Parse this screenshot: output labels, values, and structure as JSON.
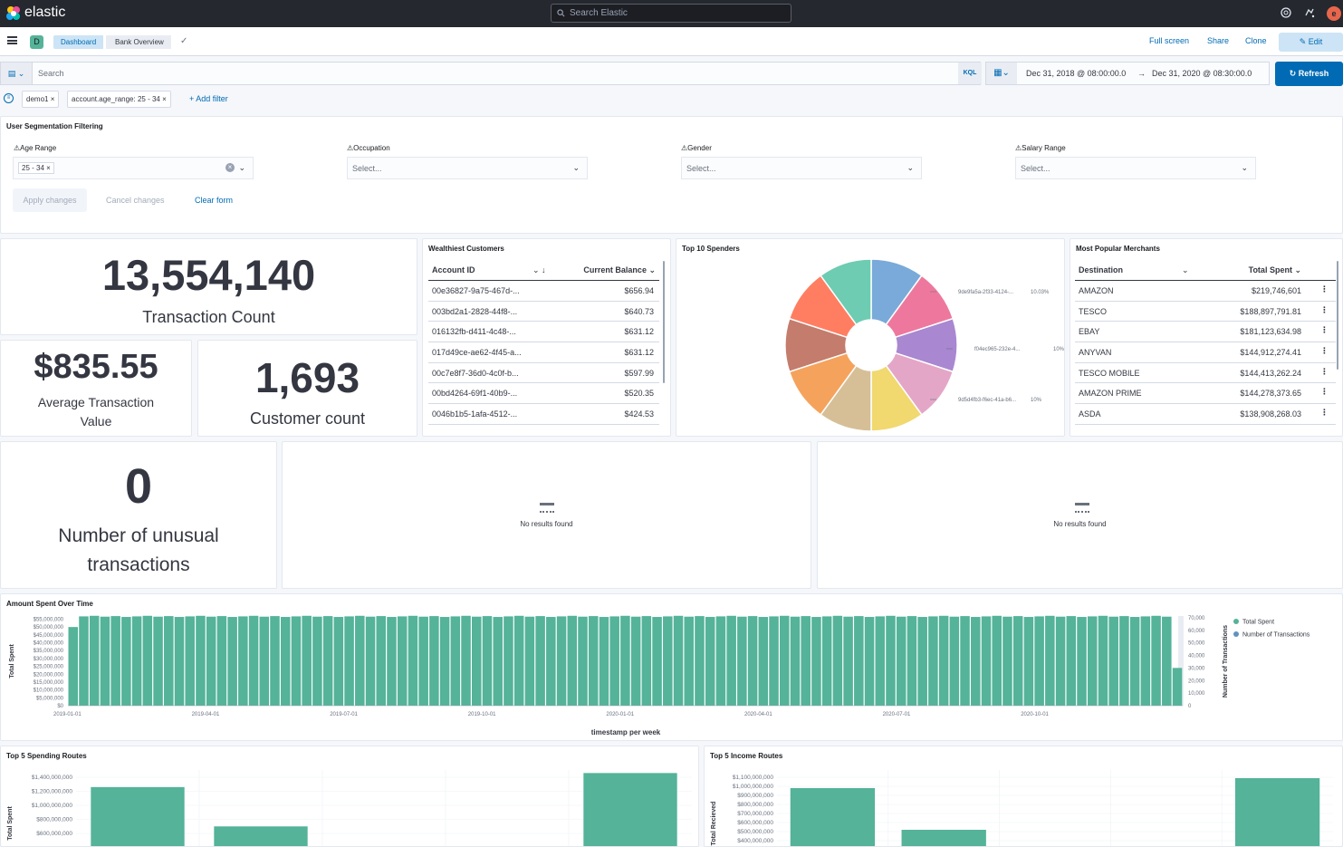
{
  "topbar": {
    "brand": "elastic",
    "search_placeholder": "Search Elastic",
    "avatar": "e"
  },
  "nav": {
    "space": "D",
    "crumb_dashboard": "Dashboard",
    "crumb_current": "Bank Overview",
    "full_screen": "Full screen",
    "share": "Share",
    "clone": "Clone",
    "edit": "Edit"
  },
  "query": {
    "placeholder": "Search",
    "kql": "KQL",
    "date_from": "Dec 31, 2018 @ 08:00:00.0",
    "date_to": "Dec 31, 2020 @ 08:30:00.0",
    "refresh": "Refresh"
  },
  "filters": {
    "pills": [
      "demo1",
      "account.age_range: 25 - 34"
    ],
    "add": "+ Add filter"
  },
  "controls": {
    "title": "User Segmentation Filtering",
    "age_label": "Age Range",
    "age_value": "25 - 34",
    "occupation_label": "Occupation",
    "gender_label": "Gender",
    "salary_label": "Salary Range",
    "select_placeholder": "Select...",
    "apply": "Apply changes",
    "cancel": "Cancel changes",
    "clear": "Clear form"
  },
  "metrics": {
    "tx_count": "13,554,140",
    "tx_count_label": "Transaction Count",
    "avg_value": "$835.55",
    "avg_label_1": "Average Transaction",
    "avg_label_2": "Value",
    "customers": "1,693",
    "customers_label": "Customer count",
    "unusual": "0",
    "unusual_label_1": "Number of unusual",
    "unusual_label_2": "transactions"
  },
  "wealthiest": {
    "title": "Wealthiest Customers",
    "col1": "Account ID",
    "col2": "Current Balance",
    "rows": [
      [
        "00e36827-9a75-467d-...",
        "$656.94"
      ],
      [
        "003bd2a1-2828-44f8-...",
        "$640.73"
      ],
      [
        "016132fb-d411-4c48-...",
        "$631.12"
      ],
      [
        "017d49ce-ae62-4f45-a...",
        "$631.12"
      ],
      [
        "00c7e8f7-36d0-4c0f-b...",
        "$597.99"
      ],
      [
        "00bd4264-69f1-40b9-...",
        "$520.35"
      ],
      [
        "0046b1b5-1afa-4512-...",
        "$424.53"
      ]
    ]
  },
  "spenders": {
    "title": "Top 10 Spenders",
    "labels": [
      {
        "text": "9de9fa5a-2f33-4124-...",
        "pct": "10.03%"
      },
      {
        "text": "f04ec965-232e-4...",
        "pct": "10%"
      },
      {
        "text": "9d5d4fb3-f6ec-41a-b6...",
        "pct": "10%"
      }
    ],
    "slice_colors": [
      "#79aad9",
      "#ee789d",
      "#a987d1",
      "#e4a6c7",
      "#f1d86f",
      "#d6bf97",
      "#f5a35c",
      "#c47c6c",
      "#ff7e62",
      "#6dccb1"
    ]
  },
  "merchants": {
    "title": "Most Popular Merchants",
    "col1": "Destination",
    "col2": "Total Spent",
    "rows": [
      [
        "AMAZON",
        "$219,746,601"
      ],
      [
        "TESCO",
        "$188,897,791.81"
      ],
      [
        "EBAY",
        "$181,123,634.98"
      ],
      [
        "ANYVAN",
        "$144,912,274.41"
      ],
      [
        "TESCO MOBILE",
        "$144,413,262.24"
      ],
      [
        "AMAZON PRIME",
        "$144,278,373.65"
      ],
      [
        "ASDA",
        "$138,908,268.03"
      ]
    ]
  },
  "empty_panels": {
    "message": "No results found"
  },
  "timeseries": {
    "title": "Amount Spent Over Time",
    "y_left_label": "Total Spent",
    "y_right_label": "Number of Transactions",
    "x_label": "timestamp per week",
    "legend": [
      "Total Spent",
      "Number of Transactions"
    ],
    "y_left_ticks": [
      "$55,000,000",
      "$50,000,000",
      "$45,000,000",
      "$40,000,000",
      "$35,000,000",
      "$30,000,000",
      "$25,000,000",
      "$20,000,000",
      "$15,000,000",
      "$10,000,000",
      "$5,000,000",
      "$0"
    ],
    "y_right_ticks": [
      "70,000",
      "60,000",
      "50,000",
      "40,000",
      "30,000",
      "20,000",
      "10,000",
      "0"
    ],
    "x_ticks": [
      "2019-01-01",
      "2019-04-01",
      "2019-07-01",
      "2019-10-01",
      "2020-01-01",
      "2020-04-01",
      "2020-07-01",
      "2020-10-01"
    ],
    "colors": {
      "spent": "#54b399",
      "tx": "#6092c0"
    }
  },
  "chart_data": [
    {
      "type": "bar",
      "title": "Amount Spent Over Time",
      "xlabel": "timestamp per week",
      "ylabel": "Total Spent",
      "ylim": [
        0,
        57000000
      ],
      "series": [
        {
          "name": "Total Spent",
          "values_approx": "weekly ~56,500,000, first week ~50,000,000, last week ~24,000,000"
        }
      ]
    },
    {
      "type": "bar",
      "title": "Top 5 Spending Routes",
      "ylabel": "Total Spent",
      "values": [
        1260000000,
        700000000,
        0,
        0,
        1460000000
      ]
    },
    {
      "type": "bar",
      "title": "Top 5 Income Routes",
      "ylabel": "Total Recieved",
      "values": [
        980000000,
        520000000,
        0,
        0,
        1090000000
      ]
    }
  ],
  "routes": {
    "spend_title": "Top 5 Spending Routes",
    "spend_ylabel": "Total Spent",
    "spend_ticks": [
      "$1,400,000,000",
      "$1,200,000,000",
      "$1,000,000,000",
      "$800,000,000",
      "$600,000,000"
    ],
    "income_title": "Top 5 Income Routes",
    "income_ylabel": "Total Recieved",
    "income_ticks": [
      "$1,100,000,000",
      "$1,000,000,000",
      "$900,000,000",
      "$800,000,000",
      "$700,000,000",
      "$600,000,000",
      "$500,000,000",
      "$400,000,000"
    ]
  }
}
